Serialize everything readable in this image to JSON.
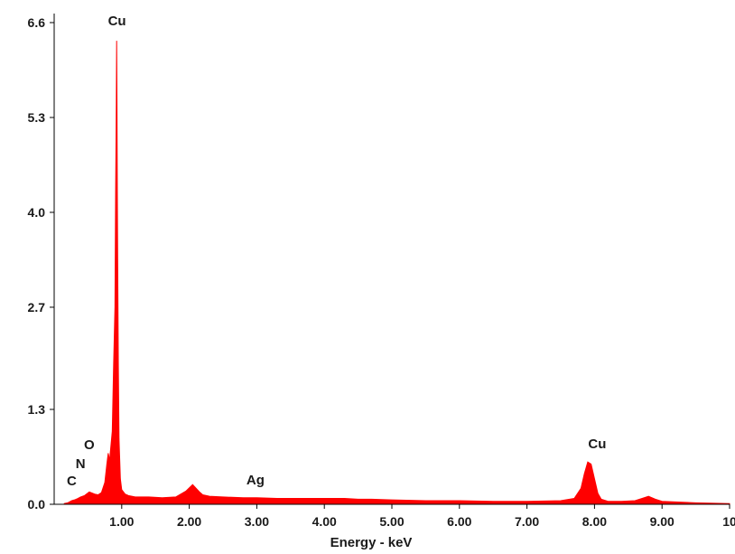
{
  "chart_data": {
    "type": "area",
    "title": "",
    "xlabel": "Energy - keV",
    "ylabel": "",
    "xlim": [
      0.0,
      10.0
    ],
    "ylim": [
      0.0,
      6.6
    ],
    "x_ticks": [
      1.0,
      2.0,
      3.0,
      4.0,
      5.0,
      6.0,
      7.0,
      8.0,
      9.0,
      10.0
    ],
    "x_tick_labels": [
      "1.00",
      "2.00",
      "3.00",
      "4.00",
      "5.00",
      "6.00",
      "7.00",
      "8.00",
      "9.00",
      "10"
    ],
    "y_ticks": [
      0.0,
      1.3,
      2.7,
      4.0,
      5.3,
      6.6
    ],
    "y_tick_labels": [
      "0.0",
      "1.3",
      "2.7",
      "4.0",
      "5.3",
      "6.6"
    ],
    "grid": false,
    "series": [
      {
        "color": "#ff0000",
        "x": [
          0.15,
          0.2,
          0.26,
          0.3,
          0.35,
          0.39,
          0.45,
          0.52,
          0.6,
          0.65,
          0.7,
          0.75,
          0.78,
          0.8,
          0.82,
          0.84,
          0.86,
          0.88,
          0.9,
          0.91,
          0.92,
          0.925,
          0.93,
          0.935,
          0.94,
          0.95,
          0.96,
          0.98,
          1.0,
          1.05,
          1.1,
          1.2,
          1.4,
          1.6,
          1.8,
          1.95,
          2.05,
          2.1,
          2.15,
          2.2,
          2.3,
          2.5,
          2.8,
          3.0,
          3.3,
          3.5,
          3.8,
          4.0,
          4.3,
          4.5,
          4.7,
          5.0,
          5.5,
          6.0,
          6.5,
          7.0,
          7.5,
          7.7,
          7.8,
          7.85,
          7.9,
          7.95,
          8.0,
          8.05,
          8.1,
          8.2,
          8.4,
          8.6,
          8.7,
          8.8,
          8.9,
          9.0,
          9.5,
          10.0
        ],
        "y": [
          0.01,
          0.02,
          0.05,
          0.06,
          0.08,
          0.1,
          0.12,
          0.17,
          0.14,
          0.13,
          0.16,
          0.3,
          0.55,
          0.7,
          0.6,
          0.8,
          1.0,
          1.9,
          2.7,
          4.3,
          5.5,
          6.35,
          5.5,
          4.3,
          3.4,
          1.9,
          0.9,
          0.35,
          0.2,
          0.14,
          0.12,
          0.1,
          0.1,
          0.09,
          0.1,
          0.18,
          0.27,
          0.22,
          0.17,
          0.13,
          0.11,
          0.1,
          0.09,
          0.09,
          0.08,
          0.08,
          0.08,
          0.08,
          0.08,
          0.07,
          0.07,
          0.06,
          0.05,
          0.05,
          0.04,
          0.04,
          0.05,
          0.08,
          0.22,
          0.42,
          0.58,
          0.55,
          0.35,
          0.15,
          0.07,
          0.04,
          0.04,
          0.05,
          0.08,
          0.11,
          0.07,
          0.04,
          0.02,
          0.01
        ]
      }
    ],
    "peaks": [
      {
        "label": "C",
        "x": 0.26
      },
      {
        "label": "N",
        "x": 0.39
      },
      {
        "label": "O",
        "x": 0.52
      },
      {
        "label": "Cu",
        "x": 0.93
      },
      {
        "label": "Ag",
        "x": 2.98
      },
      {
        "label": "Cu",
        "x": 8.04
      }
    ]
  }
}
